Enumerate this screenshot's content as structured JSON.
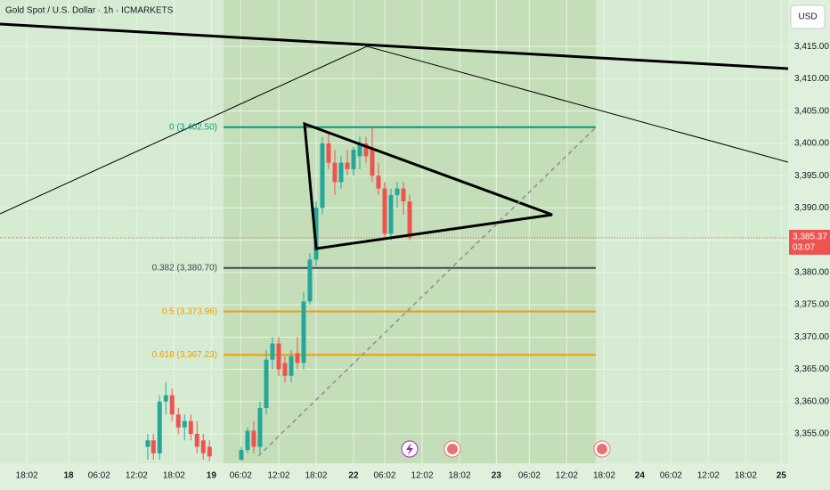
{
  "chart_data": {
    "type": "candlestick",
    "title": "Gold Spot / U.S. Dollar · 1h · ICMARKETS",
    "currency": "USD",
    "up_color": "#26a69a",
    "down_color": "#ef5350",
    "ylim": [
      3350.45,
      3422.2
    ],
    "yticks": [
      {
        "value": 3355,
        "label": "3,355.00"
      },
      {
        "value": 3360,
        "label": "3,360.00"
      },
      {
        "value": 3365,
        "label": "3,365.00"
      },
      {
        "value": 3370,
        "label": "3,370.00"
      },
      {
        "value": 3375,
        "label": "3,375.00"
      },
      {
        "value": 3380,
        "label": "3,380.00"
      },
      {
        "value": 3385,
        "label": "3,385.00"
      },
      {
        "value": 3390,
        "label": "3,390.00"
      },
      {
        "value": 3395,
        "label": "3,395.00"
      },
      {
        "value": 3400,
        "label": "3,400.00"
      },
      {
        "value": 3405,
        "label": "3,405.00"
      },
      {
        "value": 3410,
        "label": "3,410.00"
      },
      {
        "value": 3415,
        "label": "3,415.00"
      }
    ],
    "xlim": [
      -4.3,
      122.1
    ],
    "xticks": [
      {
        "value": 0,
        "label": "18:02"
      },
      {
        "value": 6.7,
        "label": "18"
      },
      {
        "value": 11.6,
        "label": "06:02"
      },
      {
        "value": 17.6,
        "label": "12:02"
      },
      {
        "value": 23.6,
        "label": "18:02"
      },
      {
        "value": 29.6,
        "label": "19"
      },
      {
        "value": 34.3,
        "label": "06:02"
      },
      {
        "value": 40.4,
        "label": "12:02"
      },
      {
        "value": 46.4,
        "label": "18:02"
      },
      {
        "value": 52.4,
        "label": "22"
      },
      {
        "value": 57.4,
        "label": "06:02"
      },
      {
        "value": 63.4,
        "label": "12:02"
      },
      {
        "value": 69.4,
        "label": "18:02"
      },
      {
        "value": 75.3,
        "label": "23"
      },
      {
        "value": 80.6,
        "label": "06:02"
      },
      {
        "value": 86.6,
        "label": "12:02"
      },
      {
        "value": 92.6,
        "label": "18:02"
      },
      {
        "value": 98.3,
        "label": "24"
      },
      {
        "value": 103.3,
        "label": "06:02"
      },
      {
        "value": 109.3,
        "label": "12:02"
      },
      {
        "value": 115.3,
        "label": "18:02"
      },
      {
        "value": 121,
        "label": "25"
      }
    ],
    "x": [
      19.4,
      20.3,
      21.3,
      22.3,
      23.3,
      24.3,
      25.3,
      26.3,
      27.3,
      28.3,
      29.3,
      34.4,
      35.4,
      36.4,
      37.4,
      38.4,
      39.4,
      40.4,
      41.4,
      42.4,
      43.4,
      44.4,
      45.4,
      46.4,
      47.4,
      48.4,
      49.4,
      50.4,
      51.4,
      52.4,
      53.4,
      54.4,
      55.4,
      56.4,
      57.4,
      58.4,
      59.4,
      60.4,
      61.4
    ],
    "open": [
      3353,
      3354,
      3352,
      3360,
      3361,
      3358,
      3356,
      3357,
      3355,
      3354,
      3353,
      3351,
      3352.5,
      3355.5,
      3353,
      3359,
      3366.5,
      3369,
      3366,
      3364,
      3367.5,
      3366,
      3375.5,
      3382,
      3390,
      3400,
      3397,
      3394,
      3397,
      3396,
      3398,
      3400,
      3399,
      3395,
      3393,
      3386,
      3392,
      3393,
      3391
    ],
    "high": [
      3355,
      3355,
      3361,
      3363,
      3362,
      3359,
      3358,
      3358,
      3357,
      3355,
      3354,
      3353,
      3356,
      3357,
      3360,
      3368,
      3370,
      3370,
      3367,
      3368,
      3370,
      3377,
      3383,
      3391,
      3401,
      3401.5,
      3399,
      3398,
      3399,
      3399.5,
      3401,
      3401,
      3402.5,
      3397,
      3394,
      3393,
      3394,
      3394,
      3392
    ],
    "low": [
      3351,
      3351,
      3351,
      3358,
      3357,
      3355,
      3354,
      3354,
      3352,
      3351,
      3350.8,
      3350.8,
      3352,
      3352,
      3352,
      3358,
      3365,
      3364,
      3363,
      3363,
      3365,
      3365,
      3375,
      3381,
      3389,
      3396,
      3392,
      3393,
      3395,
      3395,
      3396,
      3397,
      3394,
      3392,
      3385.5,
      3385,
      3390,
      3389,
      3385
    ],
    "close": [
      3354,
      3352,
      3360,
      3361,
      3358,
      3356,
      3357,
      3355,
      3353,
      3352,
      3351.5,
      3352.5,
      3355.5,
      3353,
      3359,
      3366.5,
      3369,
      3365,
      3364,
      3367,
      3366,
      3375.5,
      3382,
      3390,
      3400,
      3397,
      3394,
      3397,
      3396,
      3399,
      3400,
      3398,
      3395,
      3393,
      3386,
      3392,
      3393,
      3391,
      3385.37
    ],
    "fib_levels": [
      {
        "value": 3402.5,
        "label": "0 (3,402.50)",
        "color": "#089981"
      },
      {
        "value": 3380.7,
        "label": "0.382 (3,380.70)",
        "color": "#434651"
      },
      {
        "value": 3373.96,
        "label": "0.5 (3,373.96)",
        "color": "#f59b00"
      },
      {
        "value": 3367.23,
        "label": "0.618 (3,367.23)",
        "color": "#f59b00"
      }
    ],
    "last_price": {
      "value": 3385.37,
      "label": "3,385.37"
    },
    "countdown": "03:07"
  }
}
